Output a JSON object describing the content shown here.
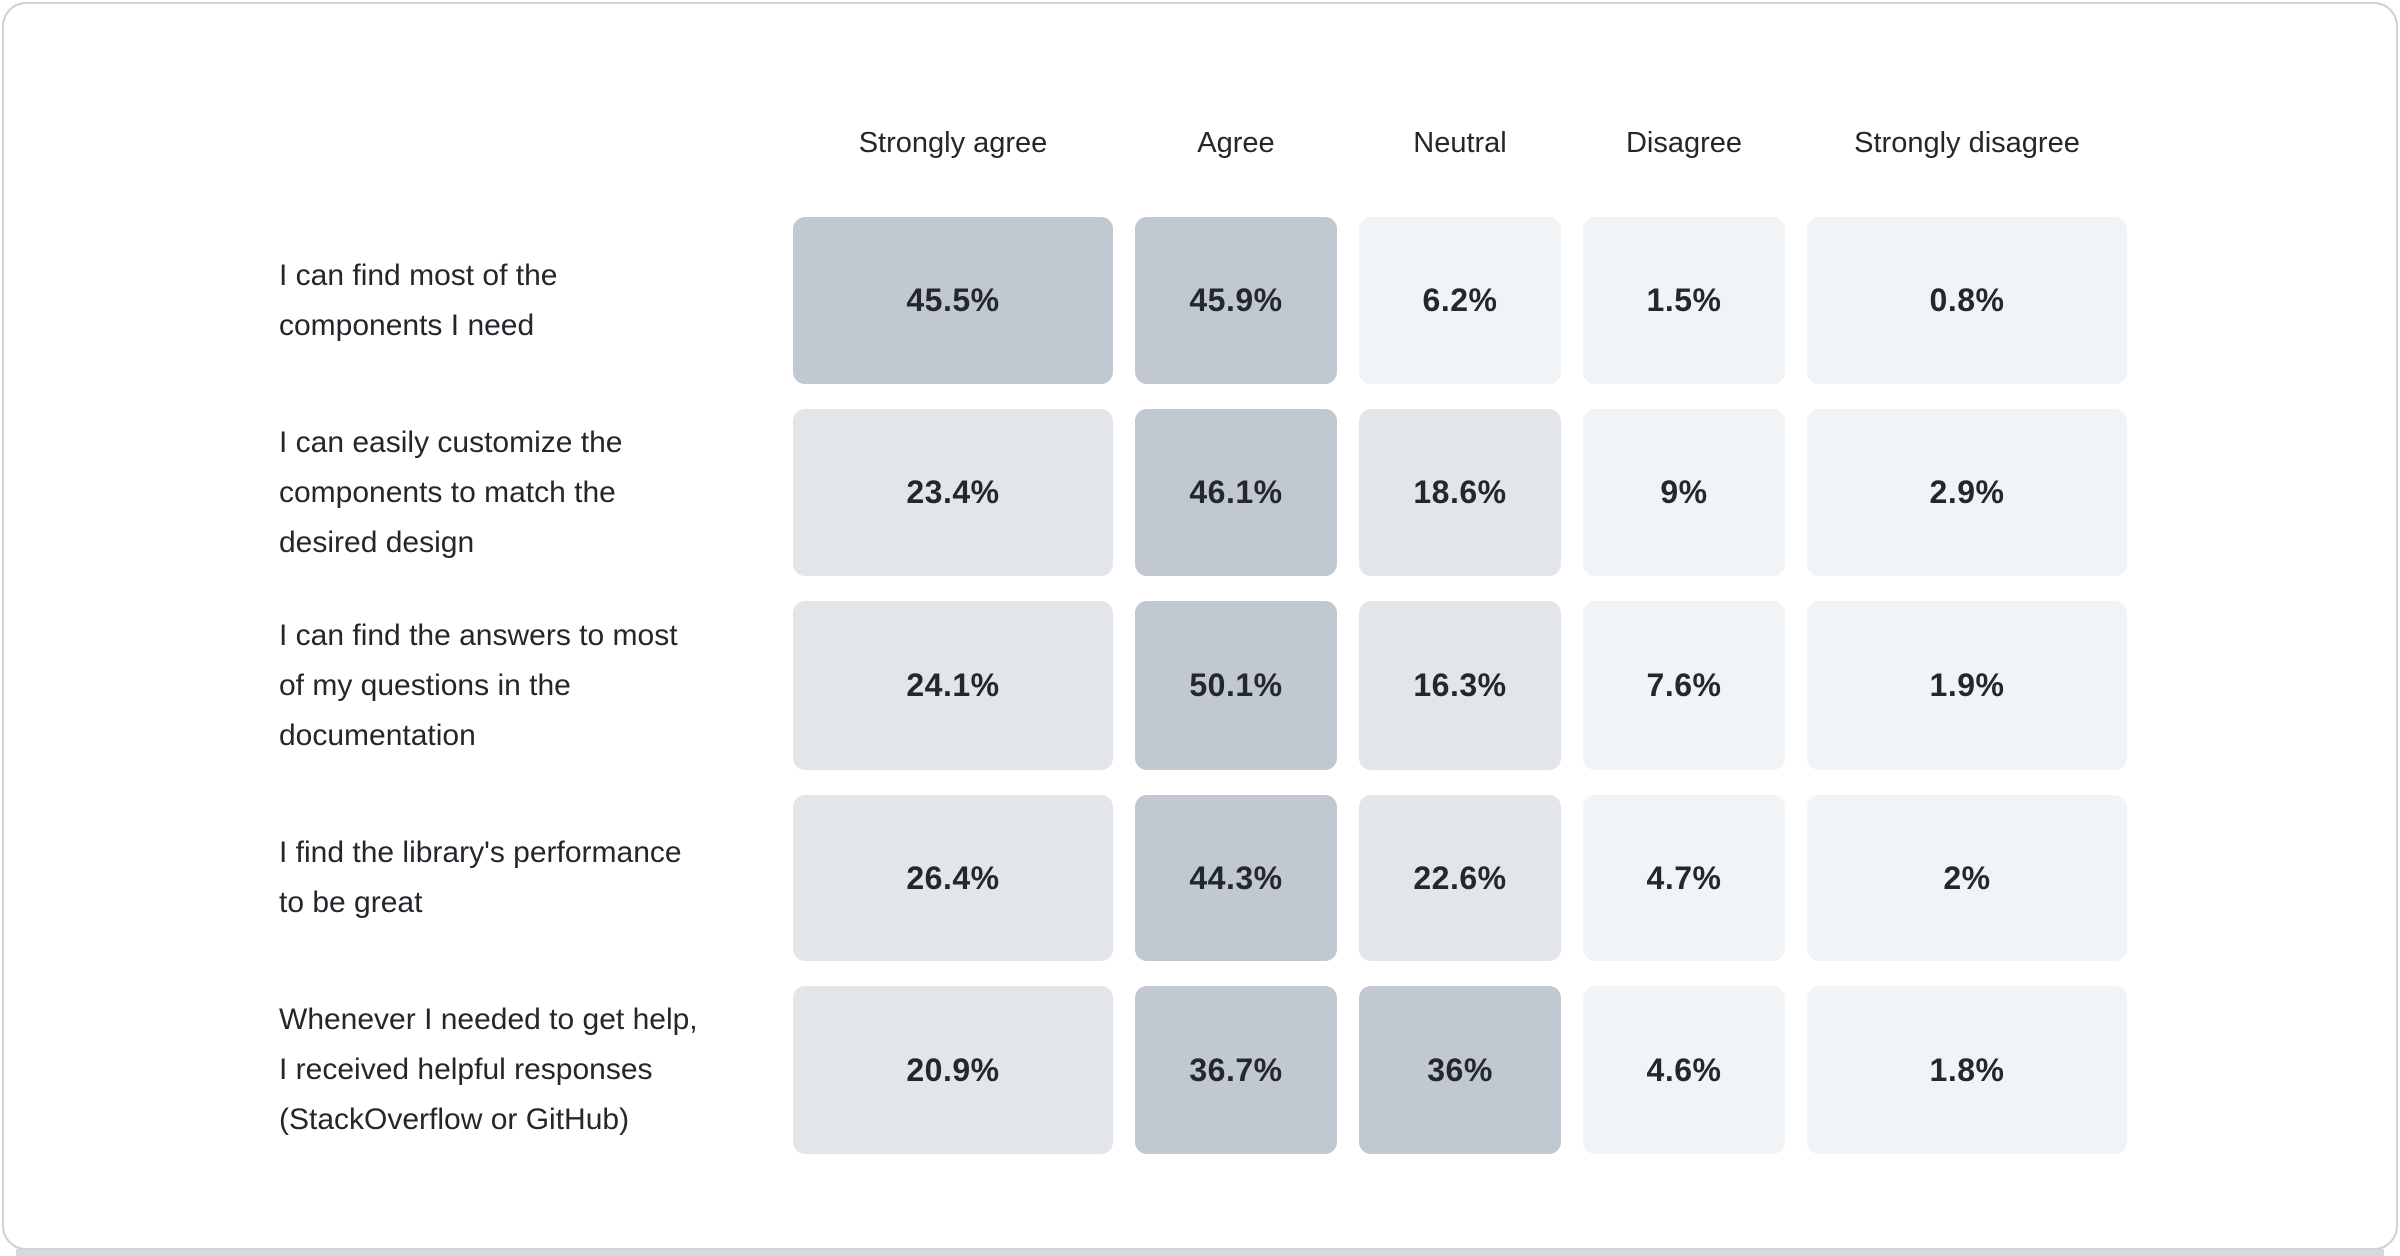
{
  "chart_data": {
    "type": "heatmap",
    "title": "",
    "columns": [
      "Strongly agree",
      "Agree",
      "Neutral",
      "Disagree",
      "Strongly disagree"
    ],
    "rows": [
      "I can find most of the components I need",
      "I can easily customize the components to match the desired design",
      "I can find the answers to most of my questions in the documentation",
      "I find the library's performance to be great",
      "Whenever I needed to get help, I received helpful responses (StackOverflow or GitHub)"
    ],
    "values": [
      [
        45.5,
        45.9,
        6.2,
        1.5,
        0.8
      ],
      [
        23.4,
        46.1,
        18.6,
        9,
        2.9
      ],
      [
        24.1,
        50.1,
        16.3,
        7.6,
        1.9
      ],
      [
        26.4,
        44.3,
        22.6,
        4.7,
        2
      ],
      [
        20.9,
        36.7,
        36,
        4.6,
        1.8
      ]
    ],
    "unit": "%",
    "color_scale": {
      "high_min": 30,
      "mid_min": 10,
      "high_bg": "#c1c8d1",
      "mid_bg": "#e2e6ea",
      "low_bg": "#f1f4f7"
    },
    "legend": "none",
    "grid": "off"
  },
  "ui": {
    "row_label_lines": [
      [
        "I can find most of the",
        "components I need"
      ],
      [
        "I can easily customize the",
        "components to match the",
        "desired design"
      ],
      [
        "I can find the answers to most",
        "of my questions in the",
        "documentation"
      ],
      [
        "I find the library's performance",
        "to be great"
      ],
      [
        "Whenever I needed to get help,",
        "I received helpful responses",
        "(StackOverflow or GitHub)"
      ]
    ],
    "cell_labels": [
      [
        "45.5%",
        "45.9%",
        "6.2%",
        "1.5%",
        "0.8%"
      ],
      [
        "23.4%",
        "46.1%",
        "18.6%",
        "9%",
        "2.9%"
      ],
      [
        "24.1%",
        "50.1%",
        "16.3%",
        "7.6%",
        "1.9%"
      ],
      [
        "26.4%",
        "44.3%",
        "22.6%",
        "4.7%",
        "2%"
      ],
      [
        "20.9%",
        "36.7%",
        "36%",
        "4.6%",
        "1.8%"
      ]
    ],
    "colors": {
      "card_bg": "#ffffff",
      "card_border": "#cdd2d7",
      "bottom_bar": "#d6dade",
      "header_text": "#23272c",
      "question_text": "#23272c",
      "value_text": "#23282d"
    }
  }
}
